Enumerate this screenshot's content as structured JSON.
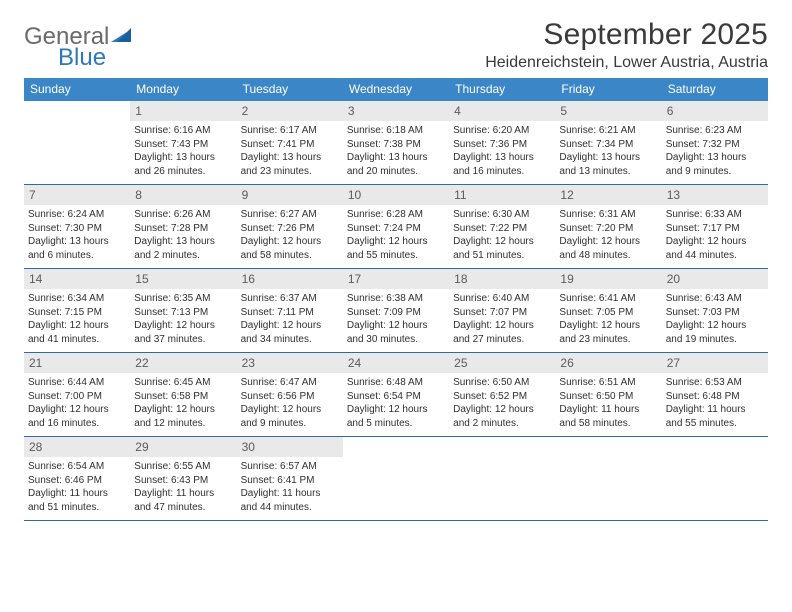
{
  "brand": {
    "line1": "General",
    "line2": "Blue"
  },
  "title": "September 2025",
  "location": "Heidenreichstein, Lower Austria, Austria",
  "colors": {
    "header_bg": "#3b86c7",
    "header_text": "#ffffff",
    "daynum_bg": "#e9e9e9",
    "daynum_text": "#5b5b5b",
    "body_text": "#303030",
    "rule": "#2f6aa3",
    "logo_gray": "#6a6a6a",
    "logo_blue": "#2f77bc",
    "background": "#ffffff"
  },
  "typography": {
    "title_fontsize": 30,
    "location_fontsize": 16,
    "dow_fontsize": 12,
    "daynum_fontsize": 12,
    "info_fontsize": 10
  },
  "layout": {
    "columns": 7,
    "rows": 5,
    "cell_min_height": 82
  },
  "dow": [
    "Sunday",
    "Monday",
    "Tuesday",
    "Wednesday",
    "Thursday",
    "Friday",
    "Saturday"
  ],
  "weeks": [
    [
      {
        "n": "",
        "sunrise": "",
        "sunset": "",
        "daylight": ""
      },
      {
        "n": "1",
        "sunrise": "Sunrise: 6:16 AM",
        "sunset": "Sunset: 7:43 PM",
        "daylight": "Daylight: 13 hours and 26 minutes."
      },
      {
        "n": "2",
        "sunrise": "Sunrise: 6:17 AM",
        "sunset": "Sunset: 7:41 PM",
        "daylight": "Daylight: 13 hours and 23 minutes."
      },
      {
        "n": "3",
        "sunrise": "Sunrise: 6:18 AM",
        "sunset": "Sunset: 7:38 PM",
        "daylight": "Daylight: 13 hours and 20 minutes."
      },
      {
        "n": "4",
        "sunrise": "Sunrise: 6:20 AM",
        "sunset": "Sunset: 7:36 PM",
        "daylight": "Daylight: 13 hours and 16 minutes."
      },
      {
        "n": "5",
        "sunrise": "Sunrise: 6:21 AM",
        "sunset": "Sunset: 7:34 PM",
        "daylight": "Daylight: 13 hours and 13 minutes."
      },
      {
        "n": "6",
        "sunrise": "Sunrise: 6:23 AM",
        "sunset": "Sunset: 7:32 PM",
        "daylight": "Daylight: 13 hours and 9 minutes."
      }
    ],
    [
      {
        "n": "7",
        "sunrise": "Sunrise: 6:24 AM",
        "sunset": "Sunset: 7:30 PM",
        "daylight": "Daylight: 13 hours and 6 minutes."
      },
      {
        "n": "8",
        "sunrise": "Sunrise: 6:26 AM",
        "sunset": "Sunset: 7:28 PM",
        "daylight": "Daylight: 13 hours and 2 minutes."
      },
      {
        "n": "9",
        "sunrise": "Sunrise: 6:27 AM",
        "sunset": "Sunset: 7:26 PM",
        "daylight": "Daylight: 12 hours and 58 minutes."
      },
      {
        "n": "10",
        "sunrise": "Sunrise: 6:28 AM",
        "sunset": "Sunset: 7:24 PM",
        "daylight": "Daylight: 12 hours and 55 minutes."
      },
      {
        "n": "11",
        "sunrise": "Sunrise: 6:30 AM",
        "sunset": "Sunset: 7:22 PM",
        "daylight": "Daylight: 12 hours and 51 minutes."
      },
      {
        "n": "12",
        "sunrise": "Sunrise: 6:31 AM",
        "sunset": "Sunset: 7:20 PM",
        "daylight": "Daylight: 12 hours and 48 minutes."
      },
      {
        "n": "13",
        "sunrise": "Sunrise: 6:33 AM",
        "sunset": "Sunset: 7:17 PM",
        "daylight": "Daylight: 12 hours and 44 minutes."
      }
    ],
    [
      {
        "n": "14",
        "sunrise": "Sunrise: 6:34 AM",
        "sunset": "Sunset: 7:15 PM",
        "daylight": "Daylight: 12 hours and 41 minutes."
      },
      {
        "n": "15",
        "sunrise": "Sunrise: 6:35 AM",
        "sunset": "Sunset: 7:13 PM",
        "daylight": "Daylight: 12 hours and 37 minutes."
      },
      {
        "n": "16",
        "sunrise": "Sunrise: 6:37 AM",
        "sunset": "Sunset: 7:11 PM",
        "daylight": "Daylight: 12 hours and 34 minutes."
      },
      {
        "n": "17",
        "sunrise": "Sunrise: 6:38 AM",
        "sunset": "Sunset: 7:09 PM",
        "daylight": "Daylight: 12 hours and 30 minutes."
      },
      {
        "n": "18",
        "sunrise": "Sunrise: 6:40 AM",
        "sunset": "Sunset: 7:07 PM",
        "daylight": "Daylight: 12 hours and 27 minutes."
      },
      {
        "n": "19",
        "sunrise": "Sunrise: 6:41 AM",
        "sunset": "Sunset: 7:05 PM",
        "daylight": "Daylight: 12 hours and 23 minutes."
      },
      {
        "n": "20",
        "sunrise": "Sunrise: 6:43 AM",
        "sunset": "Sunset: 7:03 PM",
        "daylight": "Daylight: 12 hours and 19 minutes."
      }
    ],
    [
      {
        "n": "21",
        "sunrise": "Sunrise: 6:44 AM",
        "sunset": "Sunset: 7:00 PM",
        "daylight": "Daylight: 12 hours and 16 minutes."
      },
      {
        "n": "22",
        "sunrise": "Sunrise: 6:45 AM",
        "sunset": "Sunset: 6:58 PM",
        "daylight": "Daylight: 12 hours and 12 minutes."
      },
      {
        "n": "23",
        "sunrise": "Sunrise: 6:47 AM",
        "sunset": "Sunset: 6:56 PM",
        "daylight": "Daylight: 12 hours and 9 minutes."
      },
      {
        "n": "24",
        "sunrise": "Sunrise: 6:48 AM",
        "sunset": "Sunset: 6:54 PM",
        "daylight": "Daylight: 12 hours and 5 minutes."
      },
      {
        "n": "25",
        "sunrise": "Sunrise: 6:50 AM",
        "sunset": "Sunset: 6:52 PM",
        "daylight": "Daylight: 12 hours and 2 minutes."
      },
      {
        "n": "26",
        "sunrise": "Sunrise: 6:51 AM",
        "sunset": "Sunset: 6:50 PM",
        "daylight": "Daylight: 11 hours and 58 minutes."
      },
      {
        "n": "27",
        "sunrise": "Sunrise: 6:53 AM",
        "sunset": "Sunset: 6:48 PM",
        "daylight": "Daylight: 11 hours and 55 minutes."
      }
    ],
    [
      {
        "n": "28",
        "sunrise": "Sunrise: 6:54 AM",
        "sunset": "Sunset: 6:46 PM",
        "daylight": "Daylight: 11 hours and 51 minutes."
      },
      {
        "n": "29",
        "sunrise": "Sunrise: 6:55 AM",
        "sunset": "Sunset: 6:43 PM",
        "daylight": "Daylight: 11 hours and 47 minutes."
      },
      {
        "n": "30",
        "sunrise": "Sunrise: 6:57 AM",
        "sunset": "Sunset: 6:41 PM",
        "daylight": "Daylight: 11 hours and 44 minutes."
      },
      {
        "n": "",
        "sunrise": "",
        "sunset": "",
        "daylight": ""
      },
      {
        "n": "",
        "sunrise": "",
        "sunset": "",
        "daylight": ""
      },
      {
        "n": "",
        "sunrise": "",
        "sunset": "",
        "daylight": ""
      },
      {
        "n": "",
        "sunrise": "",
        "sunset": "",
        "daylight": ""
      }
    ]
  ]
}
